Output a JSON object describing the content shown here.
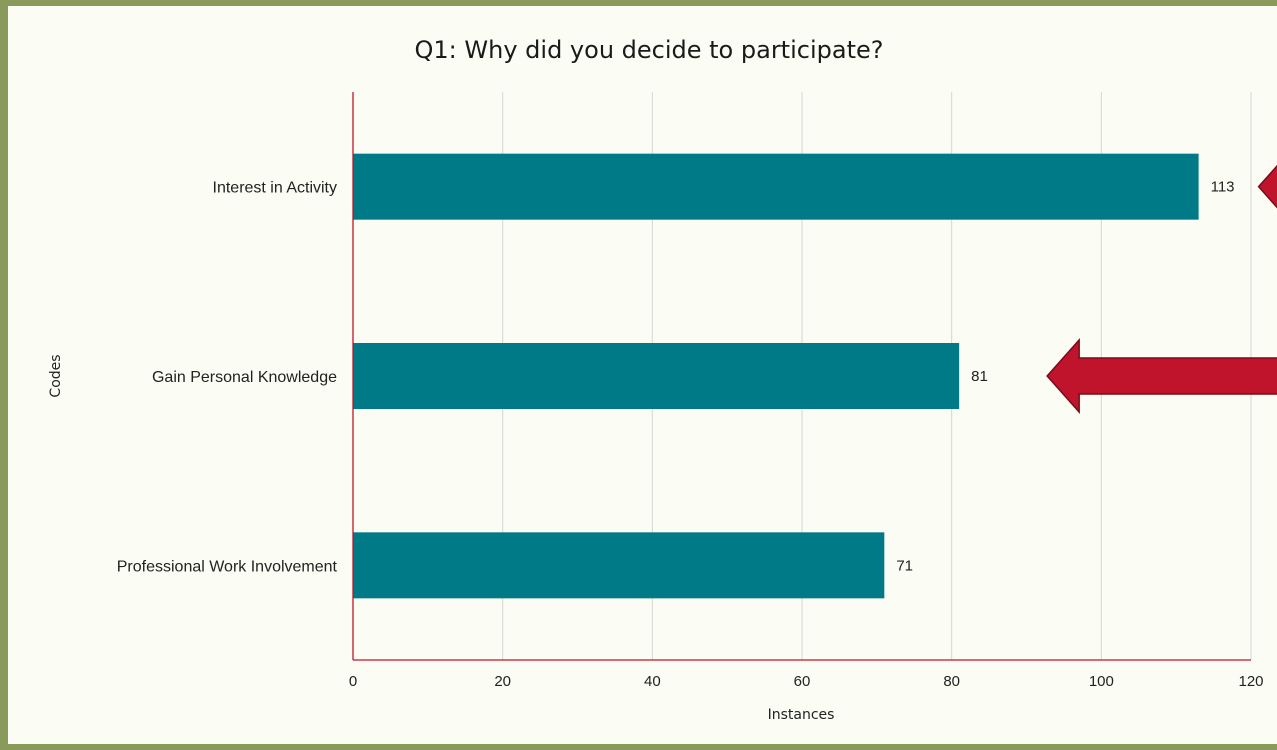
{
  "chart_data": {
    "type": "bar",
    "orientation": "horizontal",
    "title": "Q1: Why did you decide to participate?",
    "xlabel": "Instances",
    "ylabel": "Codes",
    "categories": [
      "Interest in Activity",
      "Gain Personal Knowledge",
      "Professional Work Involvement"
    ],
    "values": [
      113,
      81,
      71
    ],
    "xlim": [
      0,
      120
    ],
    "xticks": [
      0,
      20,
      40,
      60,
      80,
      100,
      120
    ],
    "grid": true,
    "bar_color": "#007a87",
    "annotation_color": "#c0142c"
  }
}
